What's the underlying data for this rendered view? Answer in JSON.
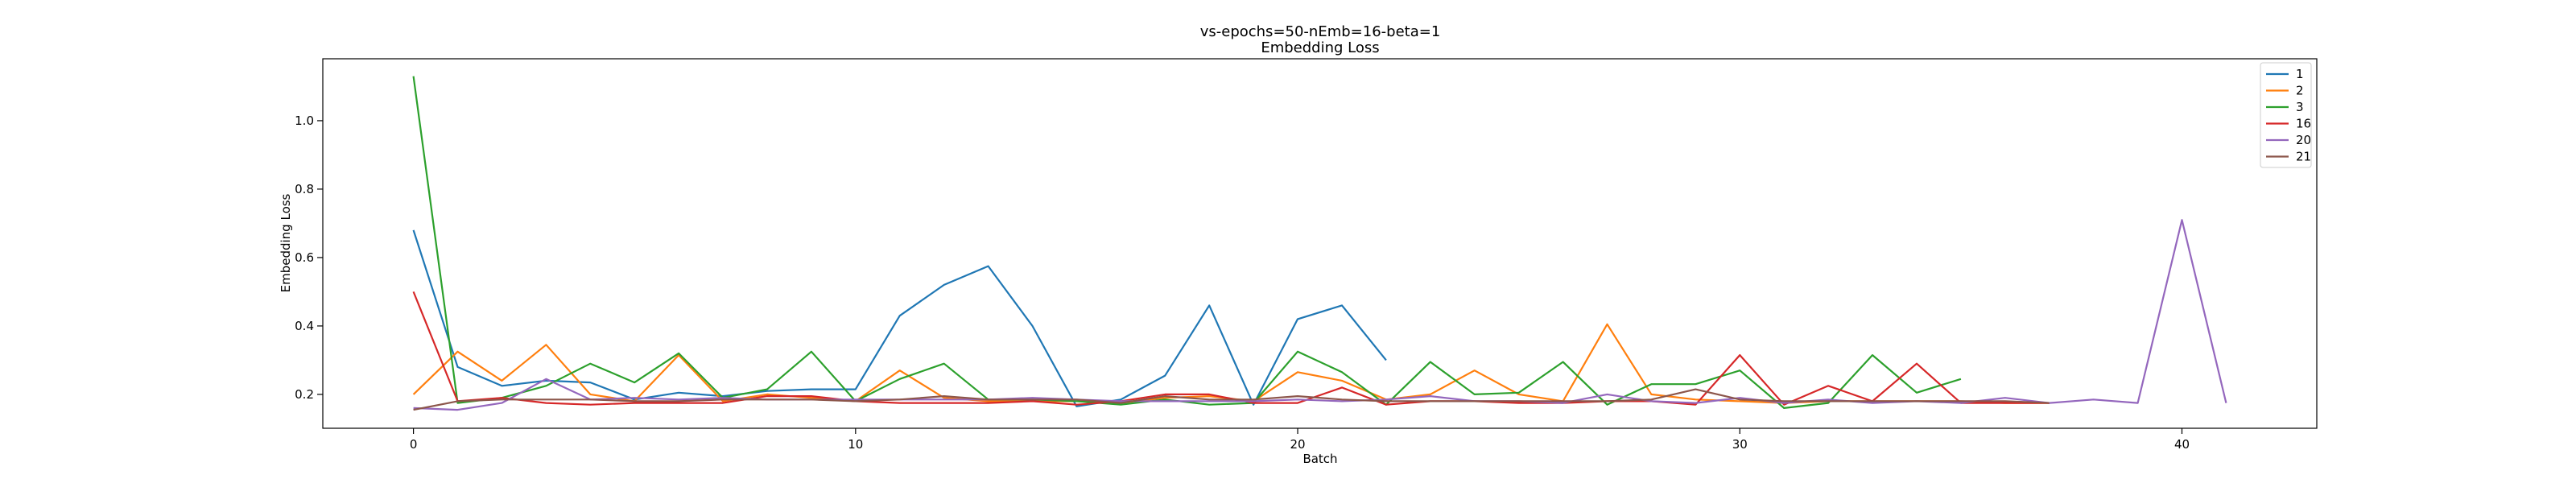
{
  "chart_data": {
    "type": "line",
    "title": "vs-epochs=50-nEmb=16-beta=1",
    "subtitle": "Embedding Loss",
    "xlabel": "Batch",
    "ylabel": "Embedding Loss",
    "xlim": [
      -2.05,
      43.05
    ],
    "ylim": [
      0.101,
      1.181
    ],
    "xticks": [
      "0",
      "10",
      "20",
      "30",
      "40"
    ],
    "yticks": [
      "0.2",
      "0.4",
      "0.6",
      "0.8",
      "1.0"
    ],
    "grid": false,
    "legend_position": "top-right",
    "series": [
      {
        "name": "1",
        "color": "#1f77b4",
        "x": [
          0,
          1,
          2,
          3,
          4,
          5,
          6,
          7,
          8,
          9,
          10,
          11,
          12,
          13,
          14,
          15,
          16,
          17,
          18,
          19,
          20,
          21,
          22
        ],
        "y": [
          0.68,
          0.28,
          0.225,
          0.24,
          0.235,
          0.185,
          0.205,
          0.195,
          0.21,
          0.215,
          0.215,
          0.43,
          0.52,
          0.575,
          0.4,
          0.165,
          0.185,
          0.255,
          0.46,
          0.17,
          0.42,
          0.46,
          0.3
        ]
      },
      {
        "name": "2",
        "color": "#ff7f0e",
        "x": [
          0,
          1,
          2,
          3,
          4,
          5,
          6,
          7,
          8,
          9,
          10,
          11,
          12,
          13,
          14,
          15,
          16,
          17,
          18,
          19,
          20,
          21,
          22,
          23,
          24,
          25,
          26,
          27,
          28,
          29,
          30,
          31,
          32,
          33,
          34,
          35,
          36,
          37
        ],
        "y": [
          0.2,
          0.325,
          0.24,
          0.345,
          0.2,
          0.18,
          0.315,
          0.18,
          0.2,
          0.19,
          0.18,
          0.27,
          0.19,
          0.18,
          0.18,
          0.18,
          0.175,
          0.19,
          0.195,
          0.18,
          0.265,
          0.24,
          0.185,
          0.2,
          0.27,
          0.2,
          0.18,
          0.405,
          0.2,
          0.185,
          0.18,
          0.175,
          0.18,
          0.18,
          0.18,
          0.18,
          0.175,
          0.175
        ]
      },
      {
        "name": "3",
        "color": "#2ca02c",
        "x": [
          0,
          1,
          2,
          3,
          4,
          5,
          6,
          7,
          8,
          9,
          10,
          11,
          12,
          13,
          14,
          15,
          16,
          17,
          18,
          19,
          20,
          21,
          22,
          23,
          24,
          25,
          26,
          27,
          28,
          29,
          30,
          31,
          32,
          33,
          34,
          35
        ],
        "y": [
          1.13,
          0.175,
          0.19,
          0.225,
          0.29,
          0.235,
          0.32,
          0.19,
          0.215,
          0.325,
          0.18,
          0.245,
          0.29,
          0.185,
          0.185,
          0.18,
          0.17,
          0.185,
          0.17,
          0.175,
          0.325,
          0.265,
          0.17,
          0.295,
          0.2,
          0.205,
          0.295,
          0.17,
          0.23,
          0.23,
          0.27,
          0.16,
          0.175,
          0.315,
          0.205,
          0.245
        ]
      },
      {
        "name": "16",
        "color": "#d62728",
        "x": [
          0,
          1,
          2,
          3,
          4,
          5,
          6,
          7,
          8,
          9,
          10,
          11,
          12,
          13,
          14,
          15,
          16,
          17,
          18,
          19,
          20,
          21,
          22,
          23,
          24,
          25,
          26,
          27,
          28,
          29,
          30,
          31,
          32,
          33,
          34,
          35,
          36,
          37
        ],
        "y": [
          0.5,
          0.18,
          0.19,
          0.175,
          0.17,
          0.175,
          0.175,
          0.175,
          0.195,
          0.195,
          0.18,
          0.175,
          0.175,
          0.175,
          0.18,
          0.17,
          0.18,
          0.2,
          0.2,
          0.175,
          0.175,
          0.22,
          0.17,
          0.18,
          0.18,
          0.175,
          0.175,
          0.18,
          0.18,
          0.17,
          0.315,
          0.17,
          0.225,
          0.18,
          0.29,
          0.175,
          0.175,
          0.175
        ]
      },
      {
        "name": "20",
        "color": "#9467bd",
        "x": [
          0,
          1,
          2,
          3,
          4,
          5,
          6,
          7,
          8,
          9,
          10,
          11,
          12,
          13,
          14,
          15,
          16,
          17,
          18,
          19,
          20,
          21,
          22,
          23,
          24,
          25,
          26,
          27,
          28,
          29,
          30,
          31,
          32,
          33,
          34,
          35,
          36,
          37,
          38,
          39,
          40,
          41
        ],
        "y": [
          0.16,
          0.155,
          0.175,
          0.245,
          0.185,
          0.19,
          0.185,
          0.19,
          0.185,
          0.185,
          0.185,
          0.185,
          0.185,
          0.185,
          0.19,
          0.185,
          0.18,
          0.18,
          0.18,
          0.18,
          0.185,
          0.18,
          0.185,
          0.195,
          0.18,
          0.18,
          0.175,
          0.2,
          0.18,
          0.175,
          0.19,
          0.175,
          0.185,
          0.175,
          0.18,
          0.175,
          0.19,
          0.175,
          0.185,
          0.175,
          0.71,
          0.175
        ]
      },
      {
        "name": "21",
        "color": "#8c564b",
        "x": [
          0,
          1,
          2,
          3,
          4,
          5,
          6,
          7,
          8,
          9,
          10,
          11,
          12,
          13,
          14,
          15,
          16,
          17,
          18,
          19,
          20,
          21,
          22,
          23,
          24,
          25,
          26,
          27,
          28,
          29,
          30,
          31,
          32,
          33,
          34,
          35,
          36,
          37
        ],
        "y": [
          0.155,
          0.18,
          0.185,
          0.185,
          0.185,
          0.18,
          0.18,
          0.185,
          0.185,
          0.185,
          0.18,
          0.185,
          0.195,
          0.185,
          0.185,
          0.185,
          0.175,
          0.195,
          0.185,
          0.185,
          0.195,
          0.185,
          0.18,
          0.18,
          0.18,
          0.18,
          0.18,
          0.18,
          0.185,
          0.215,
          0.185,
          0.18,
          0.18,
          0.18,
          0.18,
          0.18,
          0.18,
          0.175
        ]
      }
    ]
  }
}
